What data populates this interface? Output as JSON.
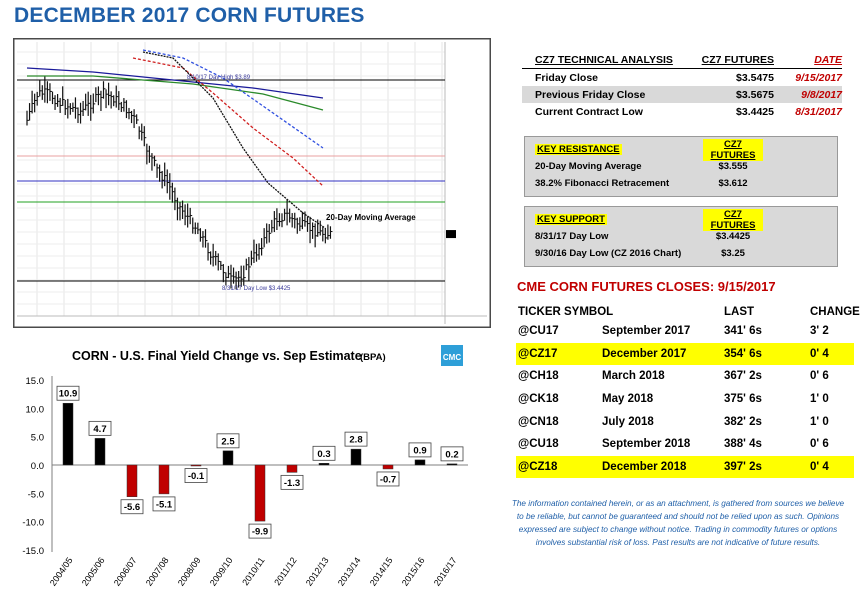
{
  "page": {
    "title": "DECEMBER 2017 CORN FUTURES"
  },
  "price_chart": {
    "annotations": {
      "high": "8/10/17 Day High $3.89",
      "ma": "20-Day Moving Average",
      "low": "8/31/17 Day Low $3.4425"
    }
  },
  "technical": {
    "headers": [
      "CZ7 TECHNICAL ANALYSIS",
      "CZ7 FUTURES",
      "DATE"
    ],
    "rows": [
      {
        "label": "Friday Close",
        "value": "$3.5475",
        "date": "9/15/2017"
      },
      {
        "label": "Previous Friday Close",
        "value": "$3.5675",
        "date": "9/8/2017"
      },
      {
        "label": "Current Contract Low",
        "value": "$3.4425",
        "date": "8/31/2017"
      }
    ]
  },
  "resistance": {
    "headers": [
      "KEY RESISTANCE",
      "CZ7 FUTURES"
    ],
    "rows": [
      {
        "label": "20-Day Moving Average",
        "value": "$3.555"
      },
      {
        "label": "38.2% Fibonacci Retracement",
        "value": "$3.612"
      }
    ]
  },
  "support": {
    "headers": [
      "KEY SUPPORT",
      "CZ7 FUTURES"
    ],
    "rows": [
      {
        "label": "8/31/17 Day Low",
        "value": "$3.4425"
      },
      {
        "label": "9/30/16 Day Low (CZ 2016 Chart)",
        "value": "$3.25"
      }
    ]
  },
  "closes": {
    "title": "CME CORN FUTURES CLOSES:  9/15/2017",
    "headers": [
      "TICKER SYMBOL",
      "",
      "LAST",
      "CHANGE"
    ],
    "rows": [
      {
        "ticker": "@CU17",
        "month": "September 2017",
        "last": "341' 6s",
        "change": "3' 2",
        "highlight": false
      },
      {
        "ticker": "@CZ17",
        "month": "December 2017",
        "last": "354' 6s",
        "change": "0' 4",
        "highlight": true
      },
      {
        "ticker": "@CH18",
        "month": "March 2018",
        "last": "367' 2s",
        "change": "0' 6",
        "highlight": false
      },
      {
        "ticker": "@CK18",
        "month": "May 2018",
        "last": "375' 6s",
        "change": "1' 0",
        "highlight": false
      },
      {
        "ticker": "@CN18",
        "month": "July 2018",
        "last": "382' 2s",
        "change": "1' 0",
        "highlight": false
      },
      {
        "ticker": "@CU18",
        "month": "September 2018",
        "last": "388' 4s",
        "change": "0' 6",
        "highlight": false
      },
      {
        "ticker": "@CZ18",
        "month": "December 2018",
        "last": "397' 2s",
        "change": "0' 4",
        "highlight": true
      }
    ]
  },
  "disclaimer": "The information contained herein, or as an attachment, is gathered from sources we believe to be reliable, but cannot be guaranteed and should not be relied upon as such. Opinions expressed are subject to change without notice. Trading in commodity futures or options involves substantial risk of loss. Past results are not indicative of future results.",
  "logo": "CMC",
  "colors": {
    "title_blue": "#1f5fa8",
    "bar_black": "#000000",
    "bar_red": "#c00000",
    "highlight": "#ffff00"
  },
  "chart_data": [
    {
      "type": "line",
      "title": "",
      "series": [
        {
          "name": "",
          "values": [
            3.8,
            3.86,
            3.86,
            3.84,
            3.83,
            3.82,
            3.84,
            3.86,
            3.85,
            3.83,
            3.8,
            3.74,
            3.69,
            3.66,
            3.61,
            3.58,
            3.55,
            3.5,
            3.47,
            3.44,
            3.46,
            3.5,
            3.54,
            3.58,
            3.59,
            3.57,
            3.56,
            3.55,
            3.547
          ]
        }
      ],
      "annotations": [
        "8/10/17 Day High $3.89",
        "20-Day Moving Average",
        "8/31/17 Day Low $3.4425"
      ]
    },
    {
      "type": "bar",
      "title": "CORN - U.S. Final Yield Change vs. Sep Estimate",
      "title_unit": "(BPA)",
      "categories": [
        "2004/05",
        "2005/06",
        "2006/07",
        "2007/08",
        "2008/09",
        "2009/10",
        "2010/11",
        "2011/12",
        "2012/13",
        "2013/14",
        "2014/15",
        "2015/16",
        "2016/17"
      ],
      "values": [
        10.9,
        4.7,
        -5.6,
        -5.1,
        -0.1,
        2.5,
        -9.9,
        -1.3,
        0.3,
        2.8,
        -0.7,
        0.9,
        0.2
      ],
      "data_labels": [
        "10.9",
        "4.7",
        "-5.6",
        "-5.1",
        "-0.1",
        "2.5",
        "-9.9",
        "-1.3",
        "0.3",
        "2.8",
        "-0.7",
        "0.9",
        "0.2"
      ],
      "y_ticks": [
        "15.0",
        "10.0",
        "5.0",
        "0.0",
        "-5.0",
        "-10.0",
        "-15.0"
      ],
      "ylim": [
        -15,
        15
      ],
      "grid": false
    }
  ]
}
